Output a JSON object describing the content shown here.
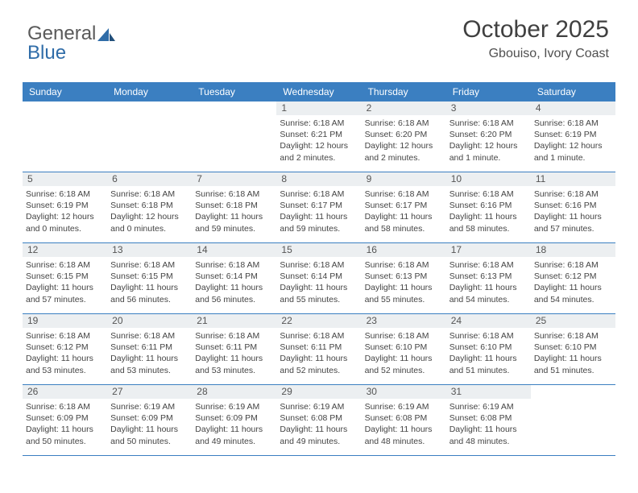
{
  "logo": {
    "text_gray": "General",
    "text_blue": "Blue",
    "accent_color": "#2f6ca8",
    "gray_color": "#5a5a5a"
  },
  "header": {
    "month_title": "October 2025",
    "location": "Gbouiso, Ivory Coast"
  },
  "colors": {
    "weekday_bg": "#3b7fc1",
    "weekday_text": "#ffffff",
    "daynum_bg": "#eceff1",
    "daynum_text": "#555555",
    "body_text": "#444444",
    "row_border": "#3b7fc1",
    "background": "#ffffff"
  },
  "weekdays": [
    "Sunday",
    "Monday",
    "Tuesday",
    "Wednesday",
    "Thursday",
    "Friday",
    "Saturday"
  ],
  "weeks": [
    [
      {
        "day": "",
        "lines": [
          "",
          "",
          "",
          ""
        ],
        "empty": true
      },
      {
        "day": "",
        "lines": [
          "",
          "",
          "",
          ""
        ],
        "empty": true
      },
      {
        "day": "",
        "lines": [
          "",
          "",
          "",
          ""
        ],
        "empty": true
      },
      {
        "day": "1",
        "lines": [
          "Sunrise: 6:18 AM",
          "Sunset: 6:21 PM",
          "Daylight: 12 hours",
          "and 2 minutes."
        ]
      },
      {
        "day": "2",
        "lines": [
          "Sunrise: 6:18 AM",
          "Sunset: 6:20 PM",
          "Daylight: 12 hours",
          "and 2 minutes."
        ]
      },
      {
        "day": "3",
        "lines": [
          "Sunrise: 6:18 AM",
          "Sunset: 6:20 PM",
          "Daylight: 12 hours",
          "and 1 minute."
        ]
      },
      {
        "day": "4",
        "lines": [
          "Sunrise: 6:18 AM",
          "Sunset: 6:19 PM",
          "Daylight: 12 hours",
          "and 1 minute."
        ]
      }
    ],
    [
      {
        "day": "5",
        "lines": [
          "Sunrise: 6:18 AM",
          "Sunset: 6:19 PM",
          "Daylight: 12 hours",
          "and 0 minutes."
        ]
      },
      {
        "day": "6",
        "lines": [
          "Sunrise: 6:18 AM",
          "Sunset: 6:18 PM",
          "Daylight: 12 hours",
          "and 0 minutes."
        ]
      },
      {
        "day": "7",
        "lines": [
          "Sunrise: 6:18 AM",
          "Sunset: 6:18 PM",
          "Daylight: 11 hours",
          "and 59 minutes."
        ]
      },
      {
        "day": "8",
        "lines": [
          "Sunrise: 6:18 AM",
          "Sunset: 6:17 PM",
          "Daylight: 11 hours",
          "and 59 minutes."
        ]
      },
      {
        "day": "9",
        "lines": [
          "Sunrise: 6:18 AM",
          "Sunset: 6:17 PM",
          "Daylight: 11 hours",
          "and 58 minutes."
        ]
      },
      {
        "day": "10",
        "lines": [
          "Sunrise: 6:18 AM",
          "Sunset: 6:16 PM",
          "Daylight: 11 hours",
          "and 58 minutes."
        ]
      },
      {
        "day": "11",
        "lines": [
          "Sunrise: 6:18 AM",
          "Sunset: 6:16 PM",
          "Daylight: 11 hours",
          "and 57 minutes."
        ]
      }
    ],
    [
      {
        "day": "12",
        "lines": [
          "Sunrise: 6:18 AM",
          "Sunset: 6:15 PM",
          "Daylight: 11 hours",
          "and 57 minutes."
        ]
      },
      {
        "day": "13",
        "lines": [
          "Sunrise: 6:18 AM",
          "Sunset: 6:15 PM",
          "Daylight: 11 hours",
          "and 56 minutes."
        ]
      },
      {
        "day": "14",
        "lines": [
          "Sunrise: 6:18 AM",
          "Sunset: 6:14 PM",
          "Daylight: 11 hours",
          "and 56 minutes."
        ]
      },
      {
        "day": "15",
        "lines": [
          "Sunrise: 6:18 AM",
          "Sunset: 6:14 PM",
          "Daylight: 11 hours",
          "and 55 minutes."
        ]
      },
      {
        "day": "16",
        "lines": [
          "Sunrise: 6:18 AM",
          "Sunset: 6:13 PM",
          "Daylight: 11 hours",
          "and 55 minutes."
        ]
      },
      {
        "day": "17",
        "lines": [
          "Sunrise: 6:18 AM",
          "Sunset: 6:13 PM",
          "Daylight: 11 hours",
          "and 54 minutes."
        ]
      },
      {
        "day": "18",
        "lines": [
          "Sunrise: 6:18 AM",
          "Sunset: 6:12 PM",
          "Daylight: 11 hours",
          "and 54 minutes."
        ]
      }
    ],
    [
      {
        "day": "19",
        "lines": [
          "Sunrise: 6:18 AM",
          "Sunset: 6:12 PM",
          "Daylight: 11 hours",
          "and 53 minutes."
        ]
      },
      {
        "day": "20",
        "lines": [
          "Sunrise: 6:18 AM",
          "Sunset: 6:11 PM",
          "Daylight: 11 hours",
          "and 53 minutes."
        ]
      },
      {
        "day": "21",
        "lines": [
          "Sunrise: 6:18 AM",
          "Sunset: 6:11 PM",
          "Daylight: 11 hours",
          "and 53 minutes."
        ]
      },
      {
        "day": "22",
        "lines": [
          "Sunrise: 6:18 AM",
          "Sunset: 6:11 PM",
          "Daylight: 11 hours",
          "and 52 minutes."
        ]
      },
      {
        "day": "23",
        "lines": [
          "Sunrise: 6:18 AM",
          "Sunset: 6:10 PM",
          "Daylight: 11 hours",
          "and 52 minutes."
        ]
      },
      {
        "day": "24",
        "lines": [
          "Sunrise: 6:18 AM",
          "Sunset: 6:10 PM",
          "Daylight: 11 hours",
          "and 51 minutes."
        ]
      },
      {
        "day": "25",
        "lines": [
          "Sunrise: 6:18 AM",
          "Sunset: 6:10 PM",
          "Daylight: 11 hours",
          "and 51 minutes."
        ]
      }
    ],
    [
      {
        "day": "26",
        "lines": [
          "Sunrise: 6:18 AM",
          "Sunset: 6:09 PM",
          "Daylight: 11 hours",
          "and 50 minutes."
        ]
      },
      {
        "day": "27",
        "lines": [
          "Sunrise: 6:19 AM",
          "Sunset: 6:09 PM",
          "Daylight: 11 hours",
          "and 50 minutes."
        ]
      },
      {
        "day": "28",
        "lines": [
          "Sunrise: 6:19 AM",
          "Sunset: 6:09 PM",
          "Daylight: 11 hours",
          "and 49 minutes."
        ]
      },
      {
        "day": "29",
        "lines": [
          "Sunrise: 6:19 AM",
          "Sunset: 6:08 PM",
          "Daylight: 11 hours",
          "and 49 minutes."
        ]
      },
      {
        "day": "30",
        "lines": [
          "Sunrise: 6:19 AM",
          "Sunset: 6:08 PM",
          "Daylight: 11 hours",
          "and 48 minutes."
        ]
      },
      {
        "day": "31",
        "lines": [
          "Sunrise: 6:19 AM",
          "Sunset: 6:08 PM",
          "Daylight: 11 hours",
          "and 48 minutes."
        ]
      },
      {
        "day": "",
        "lines": [
          "",
          "",
          "",
          ""
        ],
        "empty": true
      }
    ]
  ]
}
